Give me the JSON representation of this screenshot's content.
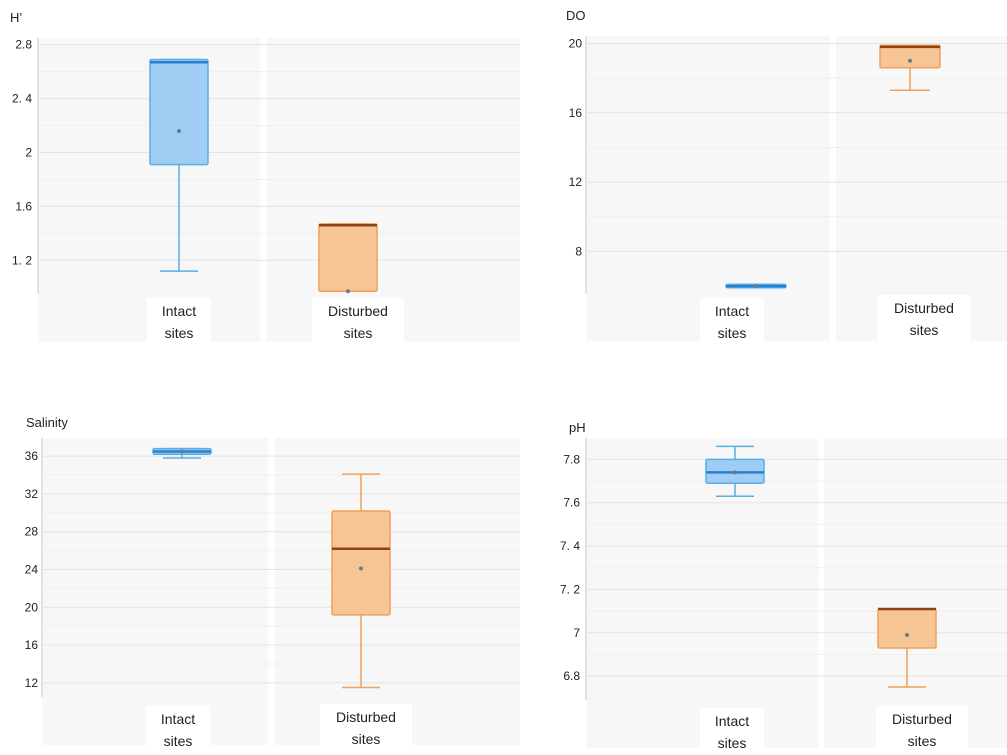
{
  "colors": {
    "intact_fill": "#9fcdf3",
    "intact_edge": "#5aaee6",
    "intact_median": "#2b7fcf",
    "disturbed_fill": "#f7c496",
    "disturbed_edge": "#f0a05a",
    "disturbed_median": "#8b4513",
    "plot_bg": "#f7f7f7",
    "grid": "#e4e4e4",
    "text": "#222222"
  },
  "chart_data": [
    {
      "type": "box",
      "title": "H’",
      "ylim": [
        0.95,
        2.82
      ],
      "yticks": [
        {
          "value": 1.2,
          "label": "1. 2"
        },
        {
          "value": 1.6,
          "label": "1.6"
        },
        {
          "value": 2.0,
          "label": "2"
        },
        {
          "value": 2.4,
          "label": "2. 4"
        },
        {
          "value": 2.8,
          "label": "2.8"
        }
      ],
      "categories": [
        {
          "label_lines": [
            "Intact",
            "sites"
          ]
        },
        {
          "label_lines": [
            "Disturbed",
            "sites"
          ]
        }
      ],
      "series": [
        {
          "group": "intact",
          "min": 1.12,
          "q1": 1.91,
          "median": 2.67,
          "q3": 2.69,
          "max": 2.69,
          "mean": 2.16
        },
        {
          "group": "disturbed",
          "min": 0.97,
          "q1": 0.97,
          "median": 1.46,
          "q3": 1.47,
          "max": 1.47,
          "mean": 0.97
        }
      ]
    },
    {
      "type": "box",
      "title": "DO",
      "ylim": [
        5.6,
        20.2
      ],
      "yticks": [
        {
          "value": 8,
          "label": "8"
        },
        {
          "value": 12,
          "label": "12"
        },
        {
          "value": 16,
          "label": "16"
        },
        {
          "value": 20,
          "label": "20"
        }
      ],
      "categories": [
        {
          "label_lines": [
            "Intact",
            "sites"
          ]
        },
        {
          "label_lines": [
            "Disturbed",
            "sites"
          ]
        }
      ],
      "series": [
        {
          "group": "intact",
          "min": 5.9,
          "q1": 5.9,
          "median": 6.0,
          "q3": 6.1,
          "max": 6.1,
          "mean": 6.0
        },
        {
          "group": "disturbed",
          "min": 17.3,
          "q1": 18.6,
          "median": 19.8,
          "q3": 19.9,
          "max": 19.9,
          "mean": 19.0
        }
      ]
    },
    {
      "type": "box",
      "title": "Salinity",
      "ylim": [
        10.5,
        37.5
      ],
      "yticks": [
        {
          "value": 12,
          "label": "12"
        },
        {
          "value": 16,
          "label": "16"
        },
        {
          "value": 20,
          "label": "20"
        },
        {
          "value": 24,
          "label": "24"
        },
        {
          "value": 28,
          "label": "28"
        },
        {
          "value": 32,
          "label": "32"
        },
        {
          "value": 36,
          "label": "36"
        }
      ],
      "categories": [
        {
          "label_lines": [
            "Intact",
            "sites"
          ]
        },
        {
          "label_lines": [
            "Disturbed",
            "sites"
          ]
        }
      ],
      "series": [
        {
          "group": "intact",
          "min": 35.8,
          "q1": 36.2,
          "median": 36.5,
          "q3": 36.8,
          "max": 36.8,
          "mean": 36.5
        },
        {
          "group": "disturbed",
          "min": 11.5,
          "q1": 19.2,
          "median": 26.2,
          "q3": 30.2,
          "max": 34.1,
          "mean": 24.1
        }
      ]
    },
    {
      "type": "box",
      "title": "pH",
      "ylim": [
        6.69,
        7.88
      ],
      "yticks": [
        {
          "value": 6.8,
          "label": "6.8"
        },
        {
          "value": 7.0,
          "label": "7"
        },
        {
          "value": 7.2,
          "label": "7. 2"
        },
        {
          "value": 7.4,
          "label": "7. 4"
        },
        {
          "value": 7.6,
          "label": "7.6"
        },
        {
          "value": 7.8,
          "label": "7.8"
        }
      ],
      "categories": [
        {
          "label_lines": [
            "Intact",
            "sites"
          ]
        },
        {
          "label_lines": [
            "Disturbed",
            "sites"
          ]
        }
      ],
      "series": [
        {
          "group": "intact",
          "min": 7.63,
          "q1": 7.69,
          "median": 7.74,
          "q3": 7.8,
          "max": 7.86,
          "mean": 7.74
        },
        {
          "group": "disturbed",
          "min": 6.75,
          "q1": 6.93,
          "median": 7.11,
          "q3": 7.11,
          "max": 7.11,
          "mean": 6.99
        }
      ]
    }
  ]
}
